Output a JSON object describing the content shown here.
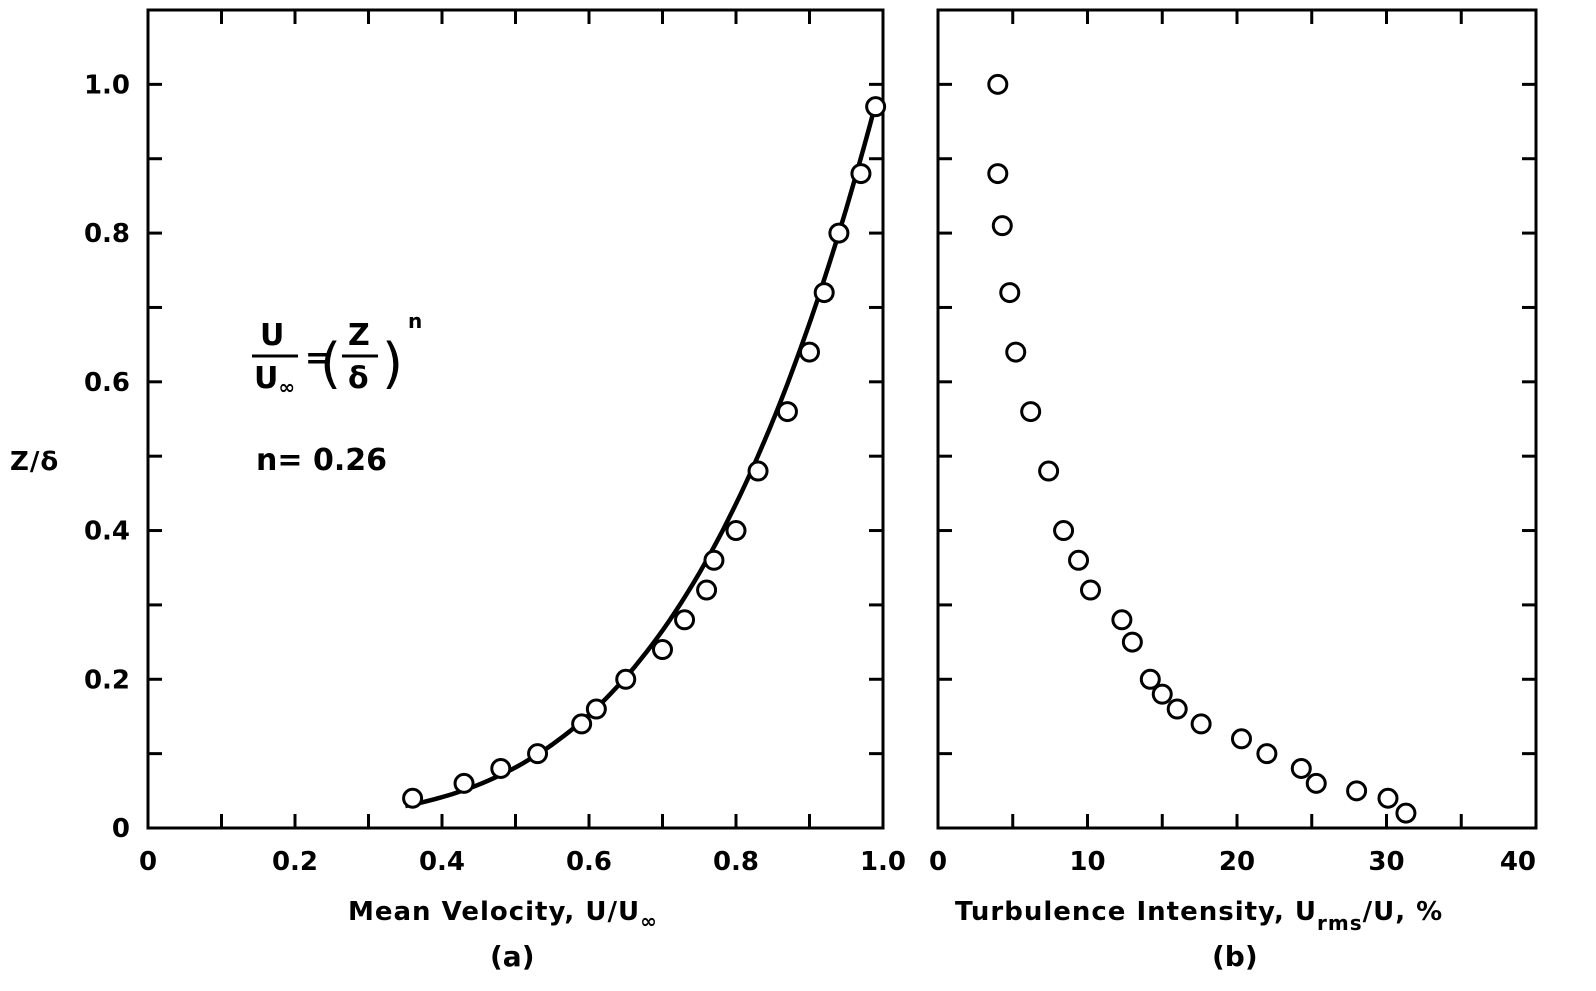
{
  "chart_data": [
    {
      "type": "scatter",
      "panel": "(a)",
      "xlabel": "Mean Velocity, U/U",
      "xlabel_sub": "∞",
      "ylabel": "Z/δ",
      "xlim": [
        0,
        1.0
      ],
      "ylim": [
        0,
        1.1
      ],
      "x_ticks": [
        "0",
        "0.2",
        "0.4",
        "0.6",
        "0.8",
        "1.0"
      ],
      "y_ticks": [
        "0",
        "0.2",
        "0.4",
        "0.6",
        "0.8",
        "1.0"
      ],
      "x_tick_values": [
        0,
        0.2,
        0.4,
        0.6,
        0.8,
        1.0
      ],
      "y_tick_values": [
        0,
        0.2,
        0.4,
        0.6,
        0.8,
        1.0
      ],
      "x_minor_step": 0.1,
      "y_minor_step": 0.1,
      "grid": false,
      "annotation": {
        "eq_num": "U",
        "eq_den": "U",
        "eq_den_sub": "∞",
        "eq_equals": "=",
        "eq_inner_num": "Z",
        "eq_inner_den": "δ",
        "eq_exp": "n",
        "n_text": "n= 0.26"
      },
      "fit_curve": {
        "form": "U/U∞ = (Z/δ)^n",
        "n": 0.26,
        "x_range": [
          0.35,
          0.99
        ]
      },
      "series": [
        {
          "marker": "open-circle",
          "points": [
            [
              0.36,
              0.04
            ],
            [
              0.43,
              0.06
            ],
            [
              0.48,
              0.08
            ],
            [
              0.53,
              0.1
            ],
            [
              0.59,
              0.14
            ],
            [
              0.61,
              0.16
            ],
            [
              0.65,
              0.2
            ],
            [
              0.7,
              0.24
            ],
            [
              0.73,
              0.28
            ],
            [
              0.76,
              0.32
            ],
            [
              0.77,
              0.36
            ],
            [
              0.8,
              0.4
            ],
            [
              0.83,
              0.48
            ],
            [
              0.87,
              0.56
            ],
            [
              0.9,
              0.64
            ],
            [
              0.92,
              0.72
            ],
            [
              0.94,
              0.8
            ],
            [
              0.97,
              0.88
            ],
            [
              0.99,
              0.97
            ]
          ]
        }
      ]
    },
    {
      "type": "scatter",
      "panel": "(b)",
      "xlabel_pre": "Turbulence Intensity, U",
      "xlabel_sub": "rms",
      "xlabel_post": "/U, %",
      "xlim": [
        0,
        40
      ],
      "ylim": [
        0,
        1.1
      ],
      "x_ticks": [
        "0",
        "10",
        "20",
        "30",
        "40"
      ],
      "x_tick_values": [
        0,
        10,
        20,
        30,
        40
      ],
      "x_minor_step": 5,
      "y_minor_step": 0.1,
      "grid": false,
      "series": [
        {
          "marker": "open-circle",
          "points": [
            [
              4.0,
              1.0
            ],
            [
              4.0,
              0.88
            ],
            [
              4.3,
              0.81
            ],
            [
              4.8,
              0.72
            ],
            [
              5.2,
              0.64
            ],
            [
              6.2,
              0.56
            ],
            [
              7.4,
              0.48
            ],
            [
              8.4,
              0.4
            ],
            [
              9.4,
              0.36
            ],
            [
              10.2,
              0.32
            ],
            [
              12.3,
              0.28
            ],
            [
              13.0,
              0.25
            ],
            [
              14.2,
              0.2
            ],
            [
              15.0,
              0.18
            ],
            [
              16.0,
              0.16
            ],
            [
              17.6,
              0.14
            ],
            [
              20.3,
              0.12
            ],
            [
              22.0,
              0.1
            ],
            [
              24.3,
              0.08
            ],
            [
              25.3,
              0.06
            ],
            [
              28.0,
              0.05
            ],
            [
              30.1,
              0.04
            ],
            [
              31.3,
              0.02
            ]
          ]
        }
      ]
    }
  ]
}
